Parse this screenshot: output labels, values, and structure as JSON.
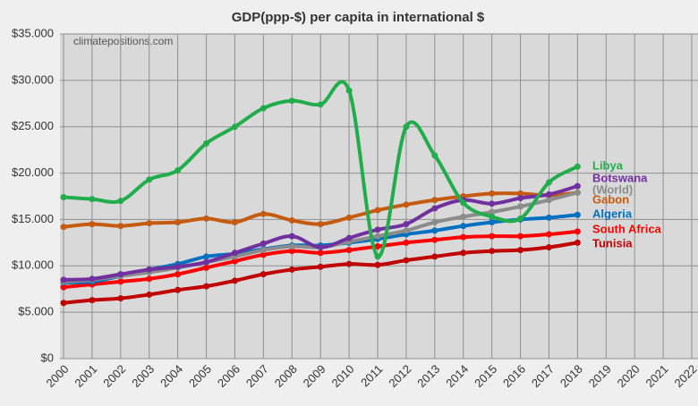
{
  "chart_data": {
    "type": "line",
    "title": "GDP(ppp-$) per capita in international $",
    "watermark": "climatepositions.com",
    "x": [
      2000,
      2001,
      2002,
      2003,
      2004,
      2005,
      2006,
      2007,
      2008,
      2009,
      2010,
      2011,
      2012,
      2013,
      2014,
      2015,
      2016,
      2017,
      2018
    ],
    "xlim": [
      2000,
      2022
    ],
    "xticks": [
      2000,
      2001,
      2002,
      2003,
      2004,
      2005,
      2006,
      2007,
      2008,
      2009,
      2010,
      2011,
      2012,
      2013,
      2014,
      2015,
      2016,
      2017,
      2018,
      2019,
      2020,
      2021,
      2022
    ],
    "ylim": [
      0,
      35000
    ],
    "yticks": [
      {
        "value": 0,
        "label": "$0"
      },
      {
        "value": 5000,
        "label": "$5.000"
      },
      {
        "value": 10000,
        "label": "$10.000"
      },
      {
        "value": 15000,
        "label": "$15.000"
      },
      {
        "value": 20000,
        "label": "$20.000"
      },
      {
        "value": 25000,
        "label": "$25.000"
      },
      {
        "value": 30000,
        "label": "$30.000"
      },
      {
        "value": 35000,
        "label": "$35.000"
      }
    ],
    "grid": true,
    "series": [
      {
        "name": "Libya",
        "color": "#21ad4b",
        "values": [
          17400,
          17200,
          17000,
          19300,
          20300,
          23200,
          25000,
          27000,
          27800,
          27400,
          28900,
          11000,
          25000,
          21900,
          16800,
          15300,
          15100,
          19000,
          20700
        ]
      },
      {
        "name": "Botswana",
        "color": "#7030a0",
        "values": [
          8500,
          8600,
          9100,
          9600,
          9900,
          10400,
          11400,
          12400,
          13200,
          12000,
          13000,
          13900,
          14500,
          16200,
          17100,
          16700,
          17300,
          17700,
          18600
        ]
      },
      {
        "name": "(World)",
        "color": "#8c8c8c",
        "values": [
          8300,
          8500,
          8900,
          9300,
          9800,
          10400,
          11000,
          11700,
          12100,
          12000,
          12600,
          13200,
          13800,
          14700,
          15300,
          15800,
          16400,
          17100,
          17900
        ]
      },
      {
        "name": "Gabon",
        "color": "#c55a11",
        "values": [
          14200,
          14500,
          14300,
          14600,
          14700,
          15100,
          14700,
          15600,
          14900,
          14500,
          15200,
          16000,
          16600,
          17100,
          17500,
          17800,
          17800,
          17600,
          17900
        ]
      },
      {
        "name": "Algeria",
        "color": "#0070c0",
        "values": [
          8200,
          8300,
          8900,
          9600,
          10200,
          11000,
          11300,
          11800,
          12200,
          12200,
          12500,
          12900,
          13400,
          13800,
          14300,
          14700,
          15000,
          15200,
          15500
        ]
      },
      {
        "name": "South Africa",
        "color": "#ff0000",
        "values": [
          7700,
          8000,
          8300,
          8600,
          9100,
          9800,
          10500,
          11200,
          11600,
          11400,
          11700,
          12100,
          12500,
          12800,
          13100,
          13200,
          13200,
          13400,
          13700
        ]
      },
      {
        "name": "Tunisia",
        "color": "#c00000",
        "values": [
          6000,
          6300,
          6500,
          6900,
          7400,
          7800,
          8400,
          9100,
          9600,
          9900,
          10200,
          10100,
          10600,
          11000,
          11400,
          11600,
          11700,
          12000,
          12500
        ]
      }
    ]
  }
}
